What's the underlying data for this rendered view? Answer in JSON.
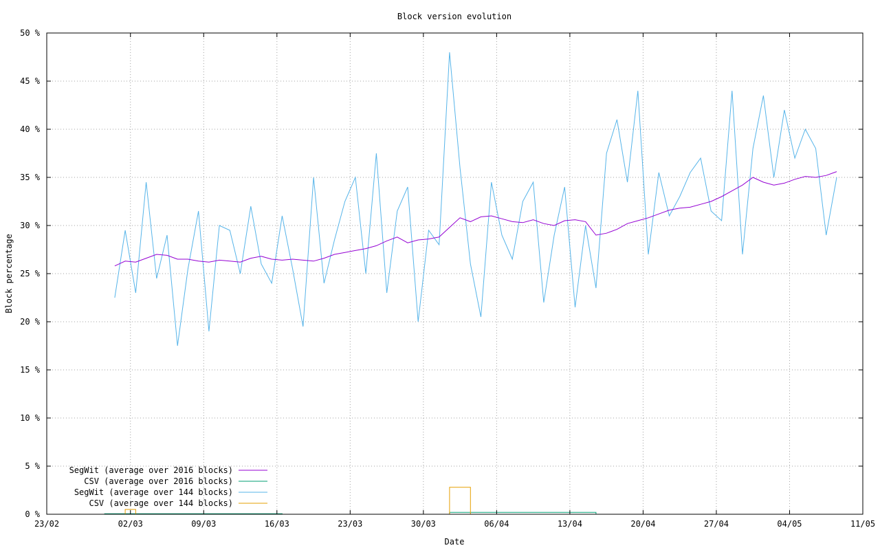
{
  "chart_data": {
    "type": "line",
    "title": "Block version evolution",
    "xlabel": "Date",
    "ylabel": "Block percentage",
    "x_axis_type": "date",
    "xlim": [
      "2016-02-23",
      "2016-05-11"
    ],
    "ylim": [
      0,
      50
    ],
    "x_tick_labels": [
      "23/02",
      "02/03",
      "09/03",
      "16/03",
      "23/03",
      "30/03",
      "06/04",
      "13/04",
      "20/04",
      "27/04",
      "04/05",
      "11/05"
    ],
    "x_tick_dates": [
      "2016-02-23",
      "2016-03-02",
      "2016-03-09",
      "2016-03-16",
      "2016-03-23",
      "2016-03-30",
      "2016-04-06",
      "2016-04-13",
      "2016-04-20",
      "2016-04-27",
      "2016-05-04",
      "2016-05-11"
    ],
    "y_ticks": [
      0,
      5,
      10,
      15,
      20,
      25,
      30,
      35,
      40,
      45,
      50
    ],
    "y_tick_labels": [
      "0 %",
      "5 %",
      "10 %",
      "15 %",
      "20 %",
      "25 %",
      "30 %",
      "35 %",
      "40 %",
      "45 %",
      "50 %"
    ],
    "grid": true,
    "legend_position": "bottom-left",
    "series": [
      {
        "name": "SegWit (average over 2016 blocks)",
        "color": "#9400d3",
        "x": [
          "2016-02-29",
          "2016-03-01",
          "2016-03-02",
          "2016-03-03",
          "2016-03-04",
          "2016-03-05",
          "2016-03-06",
          "2016-03-07",
          "2016-03-08",
          "2016-03-09",
          "2016-03-10",
          "2016-03-11",
          "2016-03-12",
          "2016-03-13",
          "2016-03-14",
          "2016-03-15",
          "2016-03-16",
          "2016-03-17",
          "2016-03-18",
          "2016-03-19",
          "2016-03-20",
          "2016-03-21",
          "2016-03-22",
          "2016-03-23",
          "2016-03-24",
          "2016-03-25",
          "2016-03-26",
          "2016-03-27",
          "2016-03-28",
          "2016-03-29",
          "2016-03-30",
          "2016-03-31",
          "2016-04-01",
          "2016-04-02",
          "2016-04-03",
          "2016-04-04",
          "2016-04-05",
          "2016-04-06",
          "2016-04-07",
          "2016-04-08",
          "2016-04-09",
          "2016-04-10",
          "2016-04-11",
          "2016-04-12",
          "2016-04-13",
          "2016-04-14",
          "2016-04-15",
          "2016-04-16",
          "2016-04-17",
          "2016-04-18",
          "2016-04-19",
          "2016-04-20",
          "2016-04-21",
          "2016-04-22",
          "2016-04-23",
          "2016-04-24",
          "2016-04-25",
          "2016-04-26",
          "2016-04-27",
          "2016-04-28",
          "2016-04-29",
          "2016-04-30",
          "2016-05-01",
          "2016-05-02",
          "2016-05-03",
          "2016-05-04",
          "2016-05-05",
          "2016-05-06",
          "2016-05-07",
          "2016-05-08"
        ],
        "y": [
          25.8,
          26.3,
          26.2,
          26.6,
          27.0,
          26.9,
          26.5,
          26.5,
          26.3,
          26.2,
          26.4,
          26.3,
          26.2,
          26.6,
          26.8,
          26.5,
          26.4,
          26.5,
          26.4,
          26.3,
          26.6,
          27.0,
          27.2,
          27.4,
          27.6,
          27.9,
          28.4,
          28.8,
          28.2,
          28.5,
          28.6,
          28.8,
          29.8,
          30.8,
          30.4,
          30.9,
          31.0,
          30.7,
          30.4,
          30.3,
          30.6,
          30.2,
          30.0,
          30.5,
          30.6,
          30.4,
          29.0,
          29.2,
          29.6,
          30.2,
          30.5,
          30.8,
          31.2,
          31.6,
          31.8,
          31.9,
          32.2,
          32.5,
          33.0,
          33.6,
          34.2,
          35.0,
          34.5,
          34.2,
          34.4,
          34.8,
          35.1,
          35.0,
          35.2,
          35.6
        ]
      },
      {
        "name": "CSV (average over 2016 blocks)",
        "color": "#009e73",
        "x": [
          "2016-02-28",
          "2016-03-16",
          "2016-03-16",
          "2016-04-01",
          "2016-04-01",
          "2016-04-15",
          "2016-04-15"
        ],
        "y": [
          0.05,
          0.05,
          0.0,
          0.0,
          0.2,
          0.2,
          0.0
        ]
      },
      {
        "name": "SegWit (average over 144 blocks)",
        "color": "#56b4e9",
        "x": [
          "2016-02-29",
          "2016-03-01",
          "2016-03-02",
          "2016-03-03",
          "2016-03-04",
          "2016-03-05",
          "2016-03-06",
          "2016-03-07",
          "2016-03-08",
          "2016-03-09",
          "2016-03-10",
          "2016-03-11",
          "2016-03-12",
          "2016-03-13",
          "2016-03-14",
          "2016-03-15",
          "2016-03-16",
          "2016-03-17",
          "2016-03-18",
          "2016-03-19",
          "2016-03-20",
          "2016-03-21",
          "2016-03-22",
          "2016-03-23",
          "2016-03-24",
          "2016-03-25",
          "2016-03-26",
          "2016-03-27",
          "2016-03-28",
          "2016-03-29",
          "2016-03-30",
          "2016-03-31",
          "2016-04-01",
          "2016-04-02",
          "2016-04-03",
          "2016-04-04",
          "2016-04-05",
          "2016-04-06",
          "2016-04-07",
          "2016-04-08",
          "2016-04-09",
          "2016-04-10",
          "2016-04-11",
          "2016-04-12",
          "2016-04-13",
          "2016-04-14",
          "2016-04-15",
          "2016-04-16",
          "2016-04-17",
          "2016-04-18",
          "2016-04-19",
          "2016-04-20",
          "2016-04-21",
          "2016-04-22",
          "2016-04-23",
          "2016-04-24",
          "2016-04-25",
          "2016-04-26",
          "2016-04-27",
          "2016-04-28",
          "2016-04-29",
          "2016-04-30",
          "2016-05-01",
          "2016-05-02",
          "2016-05-03",
          "2016-05-04",
          "2016-05-05",
          "2016-05-06",
          "2016-05-07",
          "2016-05-08"
        ],
        "y": [
          22.5,
          29.5,
          23.0,
          34.5,
          24.5,
          29.0,
          17.5,
          25.5,
          31.5,
          19.0,
          30.0,
          29.5,
          25.0,
          32.0,
          26.0,
          24.0,
          31.0,
          25.5,
          19.5,
          35.0,
          24.0,
          28.5,
          32.5,
          35.0,
          25.0,
          37.5,
          23.0,
          31.5,
          34.0,
          20.0,
          29.5,
          28.0,
          48.0,
          36.0,
          26.0,
          20.5,
          34.5,
          29.0,
          26.5,
          32.5,
          34.5,
          22.0,
          29.0,
          34.0,
          21.5,
          30.0,
          23.5,
          37.5,
          41.0,
          34.5,
          44.0,
          27.0,
          35.5,
          31.0,
          33.0,
          35.5,
          37.0,
          31.5,
          30.5,
          44.0,
          27.0,
          38.0,
          43.5,
          35.0,
          42.0,
          37.0,
          40.0,
          38.0,
          29.0,
          35.0
        ]
      },
      {
        "name": "CSV (average over 144 blocks)",
        "color": "#e69f00",
        "x": [
          "2016-02-28",
          "2016-03-01",
          "2016-03-01",
          "2016-03-02",
          "2016-03-02",
          "2016-04-01",
          "2016-04-01",
          "2016-04-02",
          "2016-04-02",
          "2016-04-03",
          "2016-04-03"
        ],
        "y": [
          0.0,
          0.0,
          0.5,
          0.5,
          0.0,
          0.0,
          2.8,
          2.8,
          2.8,
          2.8,
          0.0
        ]
      }
    ]
  }
}
